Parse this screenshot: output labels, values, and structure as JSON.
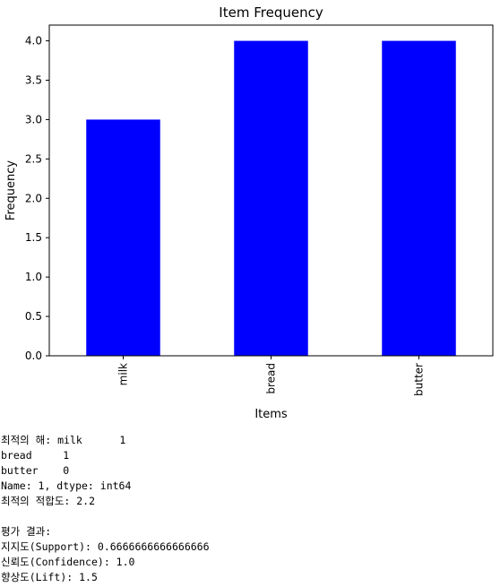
{
  "chart_data": {
    "type": "bar",
    "title": "Item Frequency",
    "xlabel": "Items",
    "ylabel": "Frequency",
    "categories": [
      "milk",
      "bread",
      "butter"
    ],
    "values": [
      3,
      4,
      4
    ],
    "ylim": [
      0,
      4.2
    ],
    "yticks": [
      "0.0",
      "0.5",
      "1.0",
      "1.5",
      "2.0",
      "2.5",
      "3.0",
      "3.5",
      "4.0"
    ],
    "bar_color": "#0000ff",
    "grid": false,
    "legend": "none"
  },
  "output": {
    "lines": [
      "최적의 해: milk      1",
      "bread     1",
      "butter    0",
      "Name: 1, dtype: int64",
      "최적의 적합도: 2.2",
      "",
      "평가 결과:",
      "지지도(Support): 0.6666666666666666",
      "신뢰도(Confidence): 1.0",
      "향상도(Lift): 1.5"
    ]
  }
}
